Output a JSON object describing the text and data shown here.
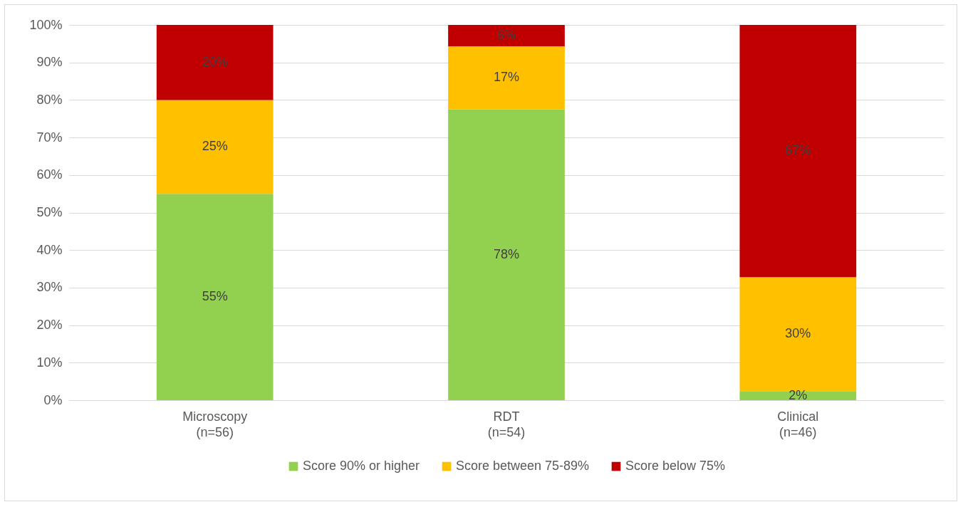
{
  "chart_data": {
    "type": "bar",
    "stacked": true,
    "categories": [
      "Microscopy\n(n=56)",
      "RDT\n(n=54)",
      "Clinical\n(n=46)"
    ],
    "series": [
      {
        "name": "Score 90% or higher",
        "color": "#92d050",
        "values": [
          55,
          77.5,
          2.4
        ],
        "value_labels": [
          "55%",
          "78%",
          "2%"
        ]
      },
      {
        "name": "Score between 75-89%",
        "color": "#ffc000",
        "values": [
          25,
          16.8,
          30.4
        ],
        "value_labels": [
          "25%",
          "17%",
          "30%"
        ]
      },
      {
        "name": "Score below 75%",
        "color": "#c00000",
        "values": [
          20,
          5.7,
          67.2
        ],
        "value_labels": [
          "20%",
          "6%",
          "67%"
        ]
      }
    ],
    "ylim": [
      0,
      100
    ],
    "yticks": [
      {
        "value": 0,
        "label": "0%"
      },
      {
        "value": 10,
        "label": "10%"
      },
      {
        "value": 20,
        "label": "20%"
      },
      {
        "value": 30,
        "label": "30%"
      },
      {
        "value": 40,
        "label": "40%"
      },
      {
        "value": 50,
        "label": "50%"
      },
      {
        "value": 60,
        "label": "60%"
      },
      {
        "value": 70,
        "label": "70%"
      },
      {
        "value": 80,
        "label": "80%"
      },
      {
        "value": 90,
        "label": "90%"
      },
      {
        "value": 100,
        "label": "100%"
      }
    ],
    "grid": "y",
    "legend": "bottom"
  }
}
